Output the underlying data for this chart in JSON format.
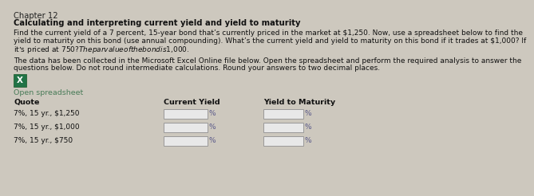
{
  "bg_color": "#cdc8be",
  "title_line1": "Chapter 12",
  "title_line2": "Calculating and interpreting current yield and yield to maturity",
  "body_text1a": "Find the current yield of a 7 percent, 15-year bond that’s currently priced in the market at $1,250. Now, use a spreadsheet below to find the",
  "body_text1b": "yield to maturity on this bond (use annual compounding). What’s the current yield and yield to maturity on this bond if it trades at $1,000? If",
  "body_text1c": "it’s priced at $750? The par value of the bond is $1,000.",
  "body_text2a": "The data has been collected in the Microsoft Excel Online file below. Open the spreadsheet and perform the required analysis to answer the",
  "body_text2b": "questions below. Do not round intermediate calculations. Round your answers to two decimal places.",
  "open_spreadsheet_text": "Open spreadsheet",
  "col_headers": [
    "Quote",
    "Current Yield",
    "Yield to Maturity"
  ],
  "rows": [
    "7%, 15 yr., $1,250",
    "7%, 15 yr., $1,000",
    "7%, 15 yr., $750"
  ],
  "link_color": "#4a7c59",
  "header_text_color": "#111111",
  "body_text_color": "#111111",
  "box_fill": "#e8e8e8",
  "box_edge": "#999999",
  "percent_color": "#5a5a8a",
  "title1_color": "#222222",
  "title2_color": "#111111"
}
